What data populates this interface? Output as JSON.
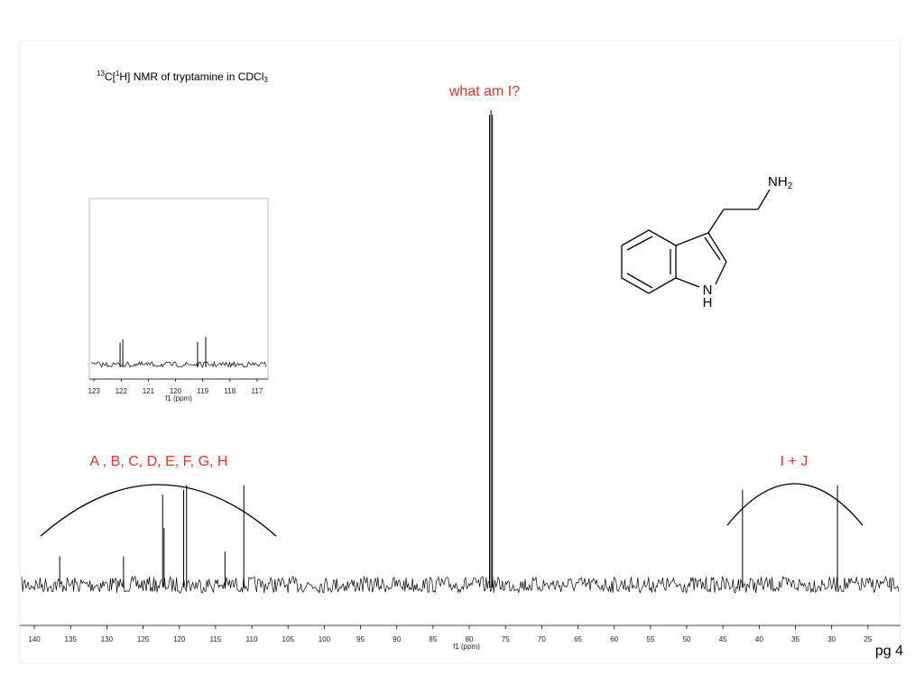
{
  "chart_data": [
    {
      "type": "spectrum",
      "title_parts": [
        "13",
        "C[",
        "1",
        "H] NMR of tryptamine in CDCl",
        "3"
      ],
      "x_label": "f1 (ppm)",
      "x": [
        136.5,
        127.7,
        122.3,
        122.1,
        119.4,
        119.0,
        113.7,
        111.1,
        77.2,
        77.0,
        76.8,
        42.3,
        29.2
      ],
      "values": [
        6,
        6,
        19,
        12,
        20,
        21,
        7,
        21,
        99,
        100,
        99,
        20,
        21
      ],
      "color": "#000000",
      "xlim": [
        142,
        20.5
      ],
      "ylim": [
        0,
        100
      ],
      "xticks": [
        140,
        135,
        130,
        125,
        120,
        115,
        110,
        105,
        100,
        95,
        90,
        85,
        80,
        75,
        70,
        65,
        60,
        55,
        50,
        45,
        40,
        35,
        30,
        25
      ],
      "annotations": [
        "what am I?",
        "A , B, C, D, E, F, G, H",
        "I + J",
        "pg 4"
      ]
    },
    {
      "type": "spectrum",
      "x_label": "f1 (ppm)",
      "x": [
        122.04,
        121.94,
        119.19,
        118.89
      ],
      "values": [
        27,
        31,
        28,
        34
      ],
      "color": "#000000",
      "xlim": [
        123.17,
        116.6
      ],
      "ylim": [
        0,
        200
      ],
      "xticks": [
        123,
        122,
        121,
        120,
        119,
        118,
        117
      ]
    }
  ],
  "molecule": {
    "amine": [
      "NH",
      "2"
    ],
    "ring_n": [
      "N",
      "H"
    ]
  }
}
